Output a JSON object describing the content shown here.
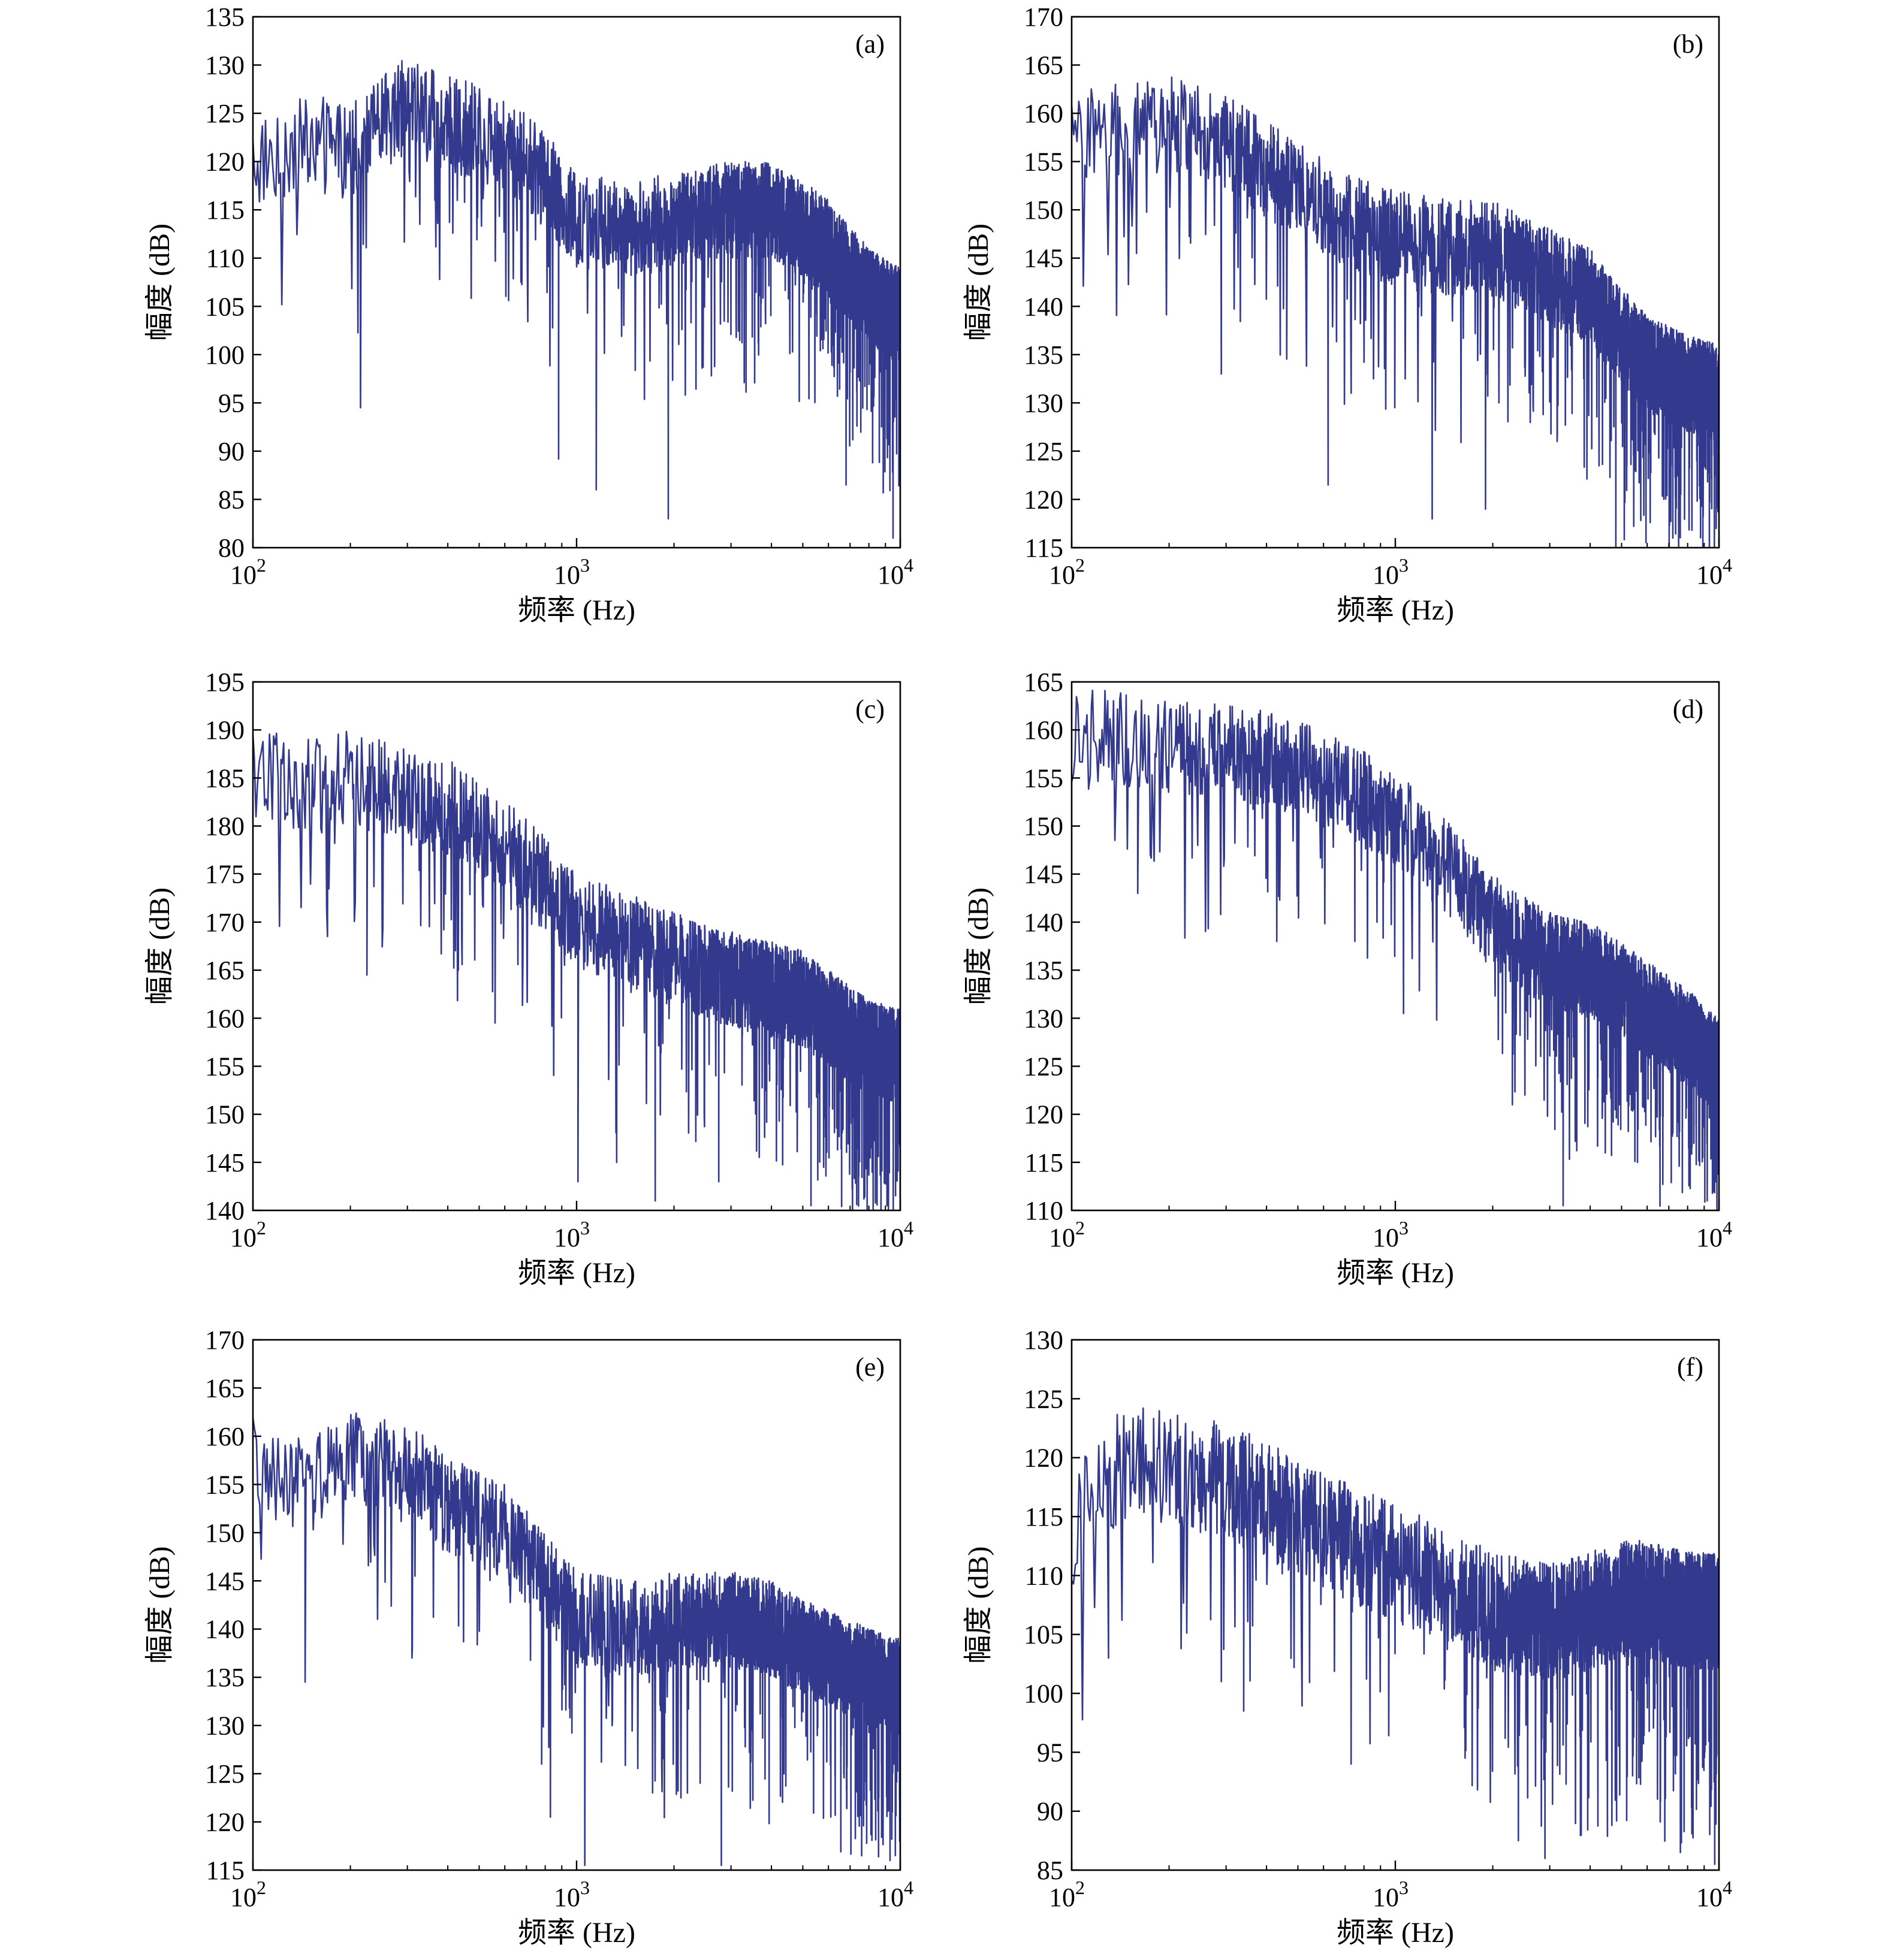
{
  "figure": {
    "line_color": "#333a8e",
    "axis_color": "#000000"
  },
  "chart_data": [
    {
      "type": "line",
      "panel_label": "(a)",
      "xlabel": "频率 (Hz)",
      "ylabel": "幅度 (dB)",
      "x_scale": "log",
      "xlim": [
        100,
        10000
      ],
      "x_ticks": [
        {
          "base": "10",
          "exp": "2"
        },
        {
          "base": "10",
          "exp": "3"
        },
        {
          "base": "10",
          "exp": "4"
        }
      ],
      "ylim": [
        80,
        135
      ],
      "y_ticks": [
        80,
        85,
        90,
        95,
        100,
        105,
        110,
        115,
        120,
        125,
        130,
        135
      ],
      "grid": false,
      "series": [
        {
          "anchors_hz": [
            100,
            150,
            200,
            300,
            400,
            600,
            800,
            1000,
            1500,
            2000,
            3000,
            4000,
            5000,
            6000,
            8000,
            10000
          ],
          "envelope_db": [
            120,
            122,
            121,
            126,
            124,
            122,
            118,
            114,
            113,
            114,
            115,
            115,
            113,
            111,
            106,
            104
          ],
          "spread_db": 5,
          "dips": [
            [
              215,
              94.5
            ],
            [
              880,
              89.2
            ],
            [
              1150,
              86
            ],
            [
              1920,
              83
            ],
            [
              6800,
              86.5
            ],
            [
              9500,
              81
            ]
          ]
        }
      ]
    },
    {
      "type": "line",
      "panel_label": "(b)",
      "xlabel": "频率 (Hz)",
      "ylabel": "幅度 (dB)",
      "x_scale": "log",
      "xlim": [
        100,
        10000
      ],
      "x_ticks": [
        {
          "base": "10",
          "exp": "2"
        },
        {
          "base": "10",
          "exp": "3"
        },
        {
          "base": "10",
          "exp": "4"
        }
      ],
      "ylim": [
        115,
        170
      ],
      "y_ticks": [
        115,
        120,
        125,
        130,
        135,
        140,
        145,
        150,
        155,
        160,
        165,
        170
      ],
      "grid": false,
      "series": [
        {
          "anchors_hz": [
            100,
            150,
            200,
            300,
            500,
            700,
            1000,
            1500,
            2000,
            3000,
            4000,
            5000,
            6000,
            8000,
            10000
          ],
          "envelope_db": [
            158,
            158,
            159,
            157,
            152,
            149,
            147,
            146,
            146,
            143,
            141,
            137,
            134,
            132,
            131
          ],
          "spread_db": 5,
          "dips": [
            [
              290,
              133
            ],
            [
              620,
              121.5
            ],
            [
              1300,
              118
            ],
            [
              1900,
              119
            ],
            [
              4800,
              115
            ],
            [
              7200,
              116
            ],
            [
              9800,
              117
            ]
          ]
        }
      ]
    },
    {
      "type": "line",
      "panel_label": "(c)",
      "xlabel": "频率 (Hz)",
      "ylabel": "幅度 (dB)",
      "x_scale": "log",
      "xlim": [
        100,
        10000
      ],
      "x_ticks": [
        {
          "base": "10",
          "exp": "2"
        },
        {
          "base": "10",
          "exp": "3"
        },
        {
          "base": "10",
          "exp": "4"
        }
      ],
      "ylim": [
        140,
        195
      ],
      "y_ticks": [
        140,
        145,
        150,
        155,
        160,
        165,
        170,
        175,
        180,
        185,
        190,
        195
      ],
      "grid": false,
      "series": [
        {
          "anchors_hz": [
            100,
            150,
            200,
            300,
            400,
            600,
            800,
            1000,
            1500,
            2000,
            3000,
            4000,
            5000,
            6000,
            8000,
            10000
          ],
          "envelope_db": [
            186,
            184,
            185,
            183,
            182,
            178,
            174,
            170,
            168,
            166,
            164,
            163,
            162,
            160,
            157,
            156
          ],
          "spread_db": 5,
          "dips": [
            [
              170,
              168.5
            ],
            [
              225,
              164.5
            ],
            [
              560,
              159.5
            ],
            [
              1010,
              143
            ],
            [
              1330,
              145
            ],
            [
              1750,
              141
            ],
            [
              2750,
              143
            ],
            [
              5300,
              140.5
            ],
            [
              9100,
              140.5
            ]
          ]
        }
      ]
    },
    {
      "type": "line",
      "panel_label": "(d)",
      "xlabel": "频率 (Hz)",
      "ylabel": "幅度 (dB)",
      "x_scale": "log",
      "xlim": [
        100,
        10000
      ],
      "x_ticks": [
        {
          "base": "10",
          "exp": "2"
        },
        {
          "base": "10",
          "exp": "3"
        },
        {
          "base": "10",
          "exp": "4"
        }
      ],
      "ylim": [
        110,
        165
      ],
      "y_ticks": [
        110,
        115,
        120,
        125,
        130,
        135,
        140,
        145,
        150,
        155,
        160,
        165
      ],
      "grid": false,
      "series": [
        {
          "anchors_hz": [
            100,
            150,
            200,
            300,
            500,
            700,
            1000,
            1500,
            2000,
            3000,
            4000,
            5000,
            6000,
            8000,
            10000
          ],
          "envelope_db": [
            160,
            159,
            158,
            158,
            156,
            154,
            151,
            145,
            140,
            136,
            135,
            133,
            131,
            128,
            125
          ],
          "spread_db": 5,
          "dips": [
            [
              160,
              143
            ],
            [
              750,
              138
            ],
            [
              1060,
              130.5
            ],
            [
              2300,
              121
            ],
            [
              3300,
              110.5
            ],
            [
              5600,
              115
            ],
            [
              9200,
              111
            ]
          ]
        }
      ]
    },
    {
      "type": "line",
      "panel_label": "(e)",
      "xlabel": "频率 (Hz)",
      "ylabel": "幅度 (dB)",
      "x_scale": "log",
      "xlim": [
        100,
        10000
      ],
      "x_ticks": [
        {
          "base": "10",
          "exp": "2"
        },
        {
          "base": "10",
          "exp": "3"
        },
        {
          "base": "10",
          "exp": "4"
        }
      ],
      "ylim": [
        115,
        170
      ],
      "y_ticks": [
        115,
        120,
        125,
        130,
        135,
        140,
        145,
        150,
        155,
        160,
        165,
        170
      ],
      "grid": false,
      "series": [
        {
          "anchors_hz": [
            100,
            150,
            200,
            300,
            400,
            600,
            800,
            1000,
            1500,
            2000,
            3000,
            4000,
            5000,
            6000,
            8000,
            10000
          ],
          "envelope_db": [
            157,
            155,
            158,
            157,
            153,
            150,
            145,
            141,
            140,
            141,
            141,
            140,
            138,
            137,
            135,
            134
          ],
          "spread_db": 5,
          "dips": [
            [
              145,
              134.5
            ],
            [
              310,
              137
            ],
            [
              780,
              126
            ],
            [
              830,
              120.5
            ],
            [
              1060,
              115.5
            ],
            [
              2200,
              123
            ],
            [
              2800,
              115.5
            ],
            [
              7600,
              116.5
            ],
            [
              9300,
              116
            ]
          ]
        }
      ]
    },
    {
      "type": "line",
      "panel_label": "(f)",
      "xlabel": "频率 (Hz)",
      "ylabel": "幅度 (dB)",
      "x_scale": "log",
      "xlim": [
        100,
        10000
      ],
      "x_ticks": [
        {
          "base": "10",
          "exp": "2"
        },
        {
          "base": "10",
          "exp": "3"
        },
        {
          "base": "10",
          "exp": "4"
        }
      ],
      "ylim": [
        85,
        130
      ],
      "y_ticks": [
        85,
        90,
        95,
        100,
        105,
        110,
        115,
        120,
        125,
        130
      ],
      "grid": false,
      "series": [
        {
          "anchors_hz": [
            100,
            150,
            200,
            300,
            500,
            700,
            1000,
            1500,
            2000,
            3000,
            4000,
            5000,
            6000,
            8000,
            10000
          ],
          "envelope_db": [
            114,
            120,
            119,
            118,
            115,
            113,
            111,
            109,
            107,
            106,
            107,
            108,
            108,
            107,
            107
          ],
          "spread_db": 5,
          "dips": [
            [
              130,
              103
            ],
            [
              290,
              101
            ],
            [
              340,
              98.5
            ],
            [
              730,
              94
            ],
            [
              2400,
              87.5
            ],
            [
              2900,
              86
            ],
            [
              7600,
              86.5
            ],
            [
              9700,
              85.5
            ]
          ]
        }
      ]
    }
  ]
}
